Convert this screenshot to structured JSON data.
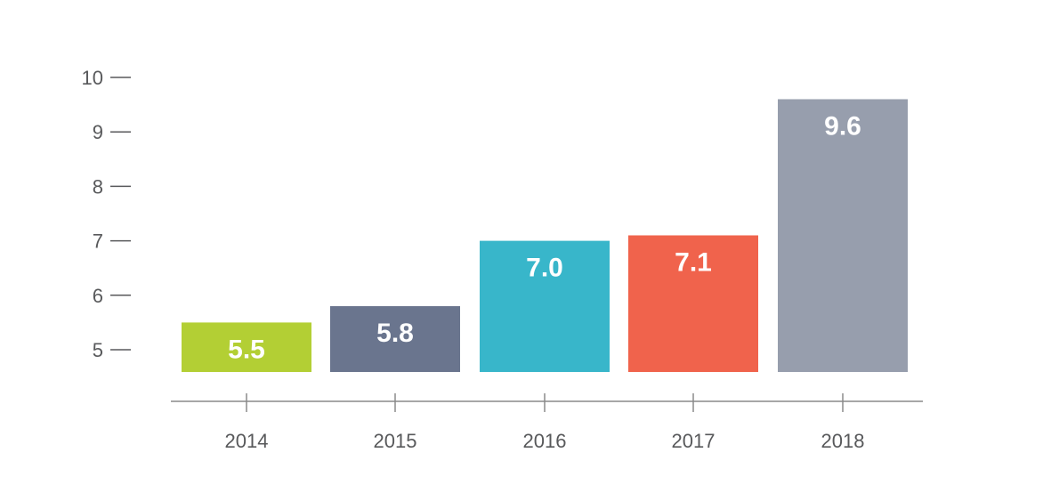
{
  "chart_data": {
    "type": "bar",
    "title": "",
    "xlabel": "",
    "ylabel": "",
    "categories": [
      "2014",
      "2015",
      "2016",
      "2017",
      "2018"
    ],
    "values": [
      5.5,
      5.8,
      7.0,
      7.1,
      9.6
    ],
    "value_labels": [
      "5.5",
      "5.8",
      "7.0",
      "7.1",
      "9.6"
    ],
    "colors": [
      "#b3cf34",
      "#6a758e",
      "#38b6ca",
      "#f0634c",
      "#979ead"
    ],
    "yticks": [
      5,
      6,
      7,
      8,
      9,
      10
    ],
    "ytick_labels": [
      "5",
      "6",
      "7",
      "8",
      "9",
      "10"
    ],
    "ylim": [
      4.6,
      10
    ],
    "grid": false,
    "legend": "none"
  }
}
